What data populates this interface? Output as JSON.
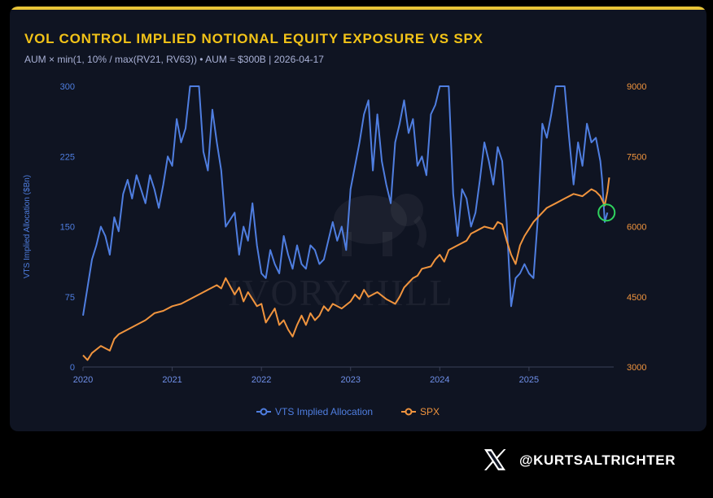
{
  "header": {
    "title": "VOL CONTROL IMPLIED NOTIONAL EQUITY EXPOSURE VS SPX",
    "subtitle": "AUM × min(1, 10% / max(RV21, RV63)) • AUM ≈ $300B | 2026-04-17"
  },
  "watermark": "IVORY HILL",
  "footer": {
    "handle": "@KURTSALTRICHTER",
    "logo_icon": "x-logo-icon"
  },
  "colors": {
    "vts": "#4f7ee0",
    "spx": "#f0943e",
    "highlight": "#2fd35e",
    "title": "#f2c318"
  },
  "chart_data": {
    "type": "line",
    "title": "VOL CONTROL IMPLIED NOTIONAL EQUITY EXPOSURE VS SPX",
    "subtitle": "AUM × min(1, 10% / max(RV21, RV63)) • AUM ≈ $300B | 2026-04-17",
    "xlabel": "",
    "ylabel_left": "VTS Implied Allocation ($Bn)",
    "ylabel_right": "",
    "xlim": [
      2020.0,
      2025.95
    ],
    "xticks": [
      "2020",
      "2021",
      "2022",
      "2023",
      "2024",
      "2025"
    ],
    "ylim_left": [
      0,
      300
    ],
    "yticks_left": [
      "0",
      "75",
      "150",
      "225",
      "300"
    ],
    "ylim_right": [
      3000,
      9000
    ],
    "yticks_right": [
      "3000",
      "4500",
      "6000",
      "7500",
      "9000"
    ],
    "legend_position": "bottom",
    "grid": false,
    "series": [
      {
        "name": "VTS Implied Allocation",
        "axis": "left",
        "color": "#4f7ee0",
        "points": [
          [
            2020.0,
            55
          ],
          [
            2020.05,
            85
          ],
          [
            2020.1,
            115
          ],
          [
            2020.15,
            130
          ],
          [
            2020.2,
            150
          ],
          [
            2020.25,
            140
          ],
          [
            2020.3,
            120
          ],
          [
            2020.35,
            160
          ],
          [
            2020.4,
            145
          ],
          [
            2020.45,
            185
          ],
          [
            2020.5,
            200
          ],
          [
            2020.55,
            180
          ],
          [
            2020.6,
            205
          ],
          [
            2020.65,
            190
          ],
          [
            2020.7,
            175
          ],
          [
            2020.75,
            205
          ],
          [
            2020.8,
            190
          ],
          [
            2020.85,
            170
          ],
          [
            2020.9,
            195
          ],
          [
            2020.95,
            225
          ],
          [
            2021.0,
            215
          ],
          [
            2021.05,
            265
          ],
          [
            2021.1,
            240
          ],
          [
            2021.15,
            255
          ],
          [
            2021.2,
            300
          ],
          [
            2021.3,
            300
          ],
          [
            2021.35,
            230
          ],
          [
            2021.4,
            210
          ],
          [
            2021.45,
            275
          ],
          [
            2021.5,
            240
          ],
          [
            2021.55,
            210
          ],
          [
            2021.6,
            150
          ],
          [
            2021.7,
            165
          ],
          [
            2021.75,
            120
          ],
          [
            2021.8,
            150
          ],
          [
            2021.85,
            135
          ],
          [
            2021.9,
            175
          ],
          [
            2021.95,
            130
          ],
          [
            2022.0,
            100
          ],
          [
            2022.05,
            95
          ],
          [
            2022.1,
            125
          ],
          [
            2022.15,
            110
          ],
          [
            2022.2,
            100
          ],
          [
            2022.25,
            140
          ],
          [
            2022.3,
            120
          ],
          [
            2022.35,
            105
          ],
          [
            2022.4,
            130
          ],
          [
            2022.45,
            110
          ],
          [
            2022.5,
            105
          ],
          [
            2022.55,
            130
          ],
          [
            2022.6,
            125
          ],
          [
            2022.65,
            110
          ],
          [
            2022.7,
            115
          ],
          [
            2022.75,
            135
          ],
          [
            2022.8,
            155
          ],
          [
            2022.85,
            135
          ],
          [
            2022.9,
            150
          ],
          [
            2022.95,
            125
          ],
          [
            2023.0,
            190
          ],
          [
            2023.05,
            215
          ],
          [
            2023.1,
            240
          ],
          [
            2023.15,
            270
          ],
          [
            2023.2,
            285
          ],
          [
            2023.25,
            210
          ],
          [
            2023.3,
            270
          ],
          [
            2023.35,
            220
          ],
          [
            2023.4,
            195
          ],
          [
            2023.45,
            175
          ],
          [
            2023.5,
            240
          ],
          [
            2023.55,
            260
          ],
          [
            2023.6,
            285
          ],
          [
            2023.65,
            250
          ],
          [
            2023.7,
            265
          ],
          [
            2023.75,
            215
          ],
          [
            2023.8,
            225
          ],
          [
            2023.85,
            205
          ],
          [
            2023.9,
            270
          ],
          [
            2023.95,
            280
          ],
          [
            2024.0,
            300
          ],
          [
            2024.1,
            300
          ],
          [
            2024.15,
            185
          ],
          [
            2024.2,
            140
          ],
          [
            2024.25,
            190
          ],
          [
            2024.3,
            180
          ],
          [
            2024.35,
            150
          ],
          [
            2024.4,
            165
          ],
          [
            2024.45,
            200
          ],
          [
            2024.5,
            240
          ],
          [
            2024.55,
            220
          ],
          [
            2024.6,
            195
          ],
          [
            2024.65,
            235
          ],
          [
            2024.7,
            220
          ],
          [
            2024.75,
            155
          ],
          [
            2024.8,
            65
          ],
          [
            2024.85,
            95
          ],
          [
            2024.9,
            100
          ],
          [
            2024.95,
            110
          ],
          [
            2025.0,
            100
          ],
          [
            2025.05,
            95
          ],
          [
            2025.1,
            160
          ],
          [
            2025.15,
            260
          ],
          [
            2025.2,
            245
          ],
          [
            2025.25,
            270
          ],
          [
            2025.3,
            300
          ],
          [
            2025.4,
            300
          ],
          [
            2025.45,
            245
          ],
          [
            2025.5,
            195
          ],
          [
            2025.55,
            240
          ],
          [
            2025.6,
            215
          ],
          [
            2025.65,
            260
          ],
          [
            2025.7,
            240
          ],
          [
            2025.75,
            245
          ],
          [
            2025.8,
            220
          ],
          [
            2025.82,
            200
          ],
          [
            2025.85,
            155
          ],
          [
            2025.88,
            165
          ]
        ]
      },
      {
        "name": "SPX",
        "axis": "right",
        "color": "#f0943e",
        "points": [
          [
            2020.0,
            3250
          ],
          [
            2020.05,
            3150
          ],
          [
            2020.1,
            3300
          ],
          [
            2020.2,
            3450
          ],
          [
            2020.3,
            3350
          ],
          [
            2020.35,
            3600
          ],
          [
            2020.4,
            3700
          ],
          [
            2020.5,
            3800
          ],
          [
            2020.6,
            3900
          ],
          [
            2020.7,
            4000
          ],
          [
            2020.8,
            4150
          ],
          [
            2020.9,
            4200
          ],
          [
            2021.0,
            4300
          ],
          [
            2021.1,
            4350
          ],
          [
            2021.2,
            4450
          ],
          [
            2021.3,
            4550
          ],
          [
            2021.4,
            4650
          ],
          [
            2021.5,
            4750
          ],
          [
            2021.55,
            4680
          ],
          [
            2021.6,
            4900
          ],
          [
            2021.7,
            4550
          ],
          [
            2021.75,
            4700
          ],
          [
            2021.8,
            4400
          ],
          [
            2021.85,
            4600
          ],
          [
            2021.9,
            4450
          ],
          [
            2021.95,
            4300
          ],
          [
            2022.0,
            4350
          ],
          [
            2022.05,
            3950
          ],
          [
            2022.1,
            4100
          ],
          [
            2022.15,
            4250
          ],
          [
            2022.2,
            3900
          ],
          [
            2022.25,
            4000
          ],
          [
            2022.3,
            3800
          ],
          [
            2022.35,
            3650
          ],
          [
            2022.4,
            3900
          ],
          [
            2022.45,
            4100
          ],
          [
            2022.5,
            3900
          ],
          [
            2022.55,
            4150
          ],
          [
            2022.6,
            4000
          ],
          [
            2022.65,
            4100
          ],
          [
            2022.7,
            4300
          ],
          [
            2022.75,
            4200
          ],
          [
            2022.8,
            4350
          ],
          [
            2022.9,
            4250
          ],
          [
            2023.0,
            4400
          ],
          [
            2023.05,
            4550
          ],
          [
            2023.1,
            4450
          ],
          [
            2023.15,
            4650
          ],
          [
            2023.2,
            4500
          ],
          [
            2023.3,
            4600
          ],
          [
            2023.4,
            4450
          ],
          [
            2023.5,
            4350
          ],
          [
            2023.55,
            4500
          ],
          [
            2023.6,
            4700
          ],
          [
            2023.65,
            4800
          ],
          [
            2023.7,
            4900
          ],
          [
            2023.75,
            4950
          ],
          [
            2023.8,
            5100
          ],
          [
            2023.9,
            5150
          ],
          [
            2023.95,
            5300
          ],
          [
            2024.0,
            5400
          ],
          [
            2024.05,
            5250
          ],
          [
            2024.1,
            5500
          ],
          [
            2024.2,
            5600
          ],
          [
            2024.3,
            5700
          ],
          [
            2024.35,
            5850
          ],
          [
            2024.4,
            5900
          ],
          [
            2024.5,
            6000
          ],
          [
            2024.6,
            5950
          ],
          [
            2024.65,
            6100
          ],
          [
            2024.7,
            6050
          ],
          [
            2024.75,
            5700
          ],
          [
            2024.8,
            5400
          ],
          [
            2024.85,
            5200
          ],
          [
            2024.9,
            5600
          ],
          [
            2024.95,
            5800
          ],
          [
            2025.0,
            5950
          ],
          [
            2025.05,
            6100
          ],
          [
            2025.1,
            6200
          ],
          [
            2025.15,
            6300
          ],
          [
            2025.2,
            6400
          ],
          [
            2025.3,
            6500
          ],
          [
            2025.4,
            6600
          ],
          [
            2025.5,
            6700
          ],
          [
            2025.6,
            6650
          ],
          [
            2025.7,
            6800
          ],
          [
            2025.75,
            6750
          ],
          [
            2025.8,
            6650
          ],
          [
            2025.85,
            6450
          ],
          [
            2025.88,
            6750
          ],
          [
            2025.9,
            7050
          ]
        ]
      }
    ],
    "highlight_circle": {
      "x": 2025.87,
      "series": "VTS Implied Allocation",
      "color": "#2fd35e"
    }
  },
  "legend": {
    "items": [
      {
        "label": "VTS Implied Allocation",
        "color": "#4f7ee0"
      },
      {
        "label": "SPX",
        "color": "#f0943e"
      }
    ]
  }
}
